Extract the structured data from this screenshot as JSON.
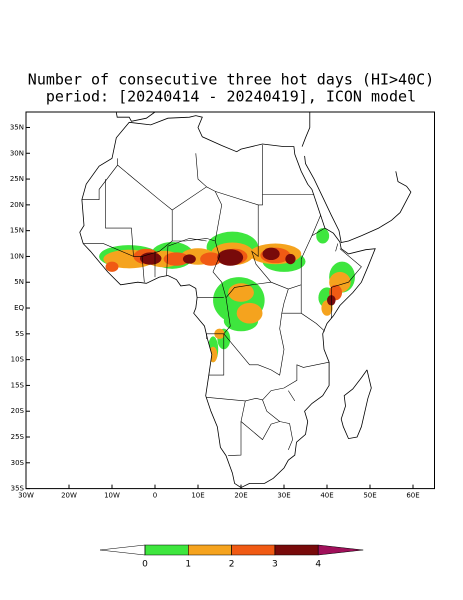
{
  "chart_data": {
    "type": "map",
    "title": "Number of consecutive three hot days (HI>40C)",
    "subtitle": "period: [20240414 - 20240419], ICON model",
    "xlim": [
      -30,
      65
    ],
    "ylim": [
      -35,
      38
    ],
    "xticks": [
      {
        "value": -30,
        "label": "30W"
      },
      {
        "value": -20,
        "label": "20W"
      },
      {
        "value": -10,
        "label": "10W"
      },
      0,
      {
        "value": 10,
        "label": "10E"
      },
      {
        "value": 20,
        "label": "20E"
      },
      {
        "value": 30,
        "label": "30E"
      },
      {
        "value": 40,
        "label": "40E"
      },
      {
        "value": 50,
        "label": "50E"
      },
      {
        "value": 60,
        "label": "60E"
      }
    ],
    "yticks": [
      {
        "value": 35,
        "label": "35N"
      },
      {
        "value": 30,
        "label": "30N"
      },
      {
        "value": 25,
        "label": "25N"
      },
      {
        "value": 20,
        "label": "20N"
      },
      {
        "value": 15,
        "label": "15N"
      },
      {
        "value": 10,
        "label": "10N"
      },
      {
        "value": 5,
        "label": "5N"
      },
      {
        "value": 0,
        "label": "EQ"
      },
      {
        "value": -5,
        "label": "5S"
      },
      {
        "value": -10,
        "label": "10S"
      },
      {
        "value": -15,
        "label": "15S"
      },
      {
        "value": -20,
        "label": "20S"
      },
      {
        "value": -25,
        "label": "25S"
      },
      {
        "value": -30,
        "label": "30S"
      },
      {
        "value": -35,
        "label": "35S"
      }
    ],
    "colorbar": {
      "levels": [
        0,
        1,
        2,
        3,
        4
      ],
      "colors": [
        "#ffffff",
        "#3ee63e",
        "#f5a31e",
        "#f05a14",
        "#780a0a",
        "#a0105a"
      ]
    }
  }
}
